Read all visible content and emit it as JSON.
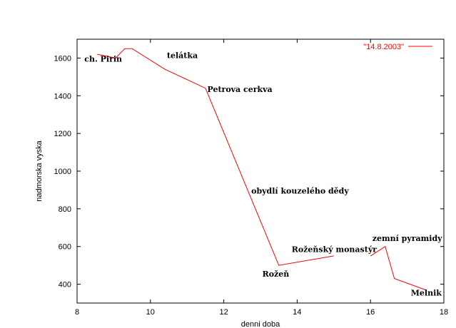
{
  "chart_data": {
    "type": "line",
    "title": "",
    "xlabel": "denni doba",
    "ylabel": "nadmorska vyska",
    "xlim": [
      8,
      18
    ],
    "ylim": [
      300,
      1700
    ],
    "xticks": [
      8,
      10,
      12,
      14,
      16,
      18
    ],
    "yticks": [
      400,
      600,
      800,
      1000,
      1200,
      1400,
      1600
    ],
    "grid": false,
    "legend_position": "top-right",
    "series": [
      {
        "name": "\"14.8.2003\"",
        "color": "#ff0000",
        "x": [
          8.55,
          9.05,
          9.3,
          9.5,
          10.4,
          11.5,
          13.5,
          15.0,
          null,
          16.0,
          16.4,
          16.65,
          17.5
        ],
        "y": [
          1620,
          1600,
          1650,
          1650,
          1540,
          1440,
          500,
          550,
          null,
          550,
          600,
          430,
          370
        ]
      }
    ],
    "annotations": [
      {
        "text": "ch. Pirin",
        "x": 8.2,
        "y": 1580
      },
      {
        "text": "telátka",
        "x": 10.45,
        "y": 1600
      },
      {
        "text": "Petrova cerkva",
        "x": 11.55,
        "y": 1420
      },
      {
        "text": "obydlí kouzelého dědy",
        "x": 12.75,
        "y": 880
      },
      {
        "text": "Rožeňský monastýr",
        "x": 13.85,
        "y": 570
      },
      {
        "text": "zemní pyramidy",
        "x": 16.05,
        "y": 630
      },
      {
        "text": "Rožeň",
        "x": 13.05,
        "y": 440
      },
      {
        "text": "Melnik",
        "x": 17.1,
        "y": 340
      }
    ]
  }
}
